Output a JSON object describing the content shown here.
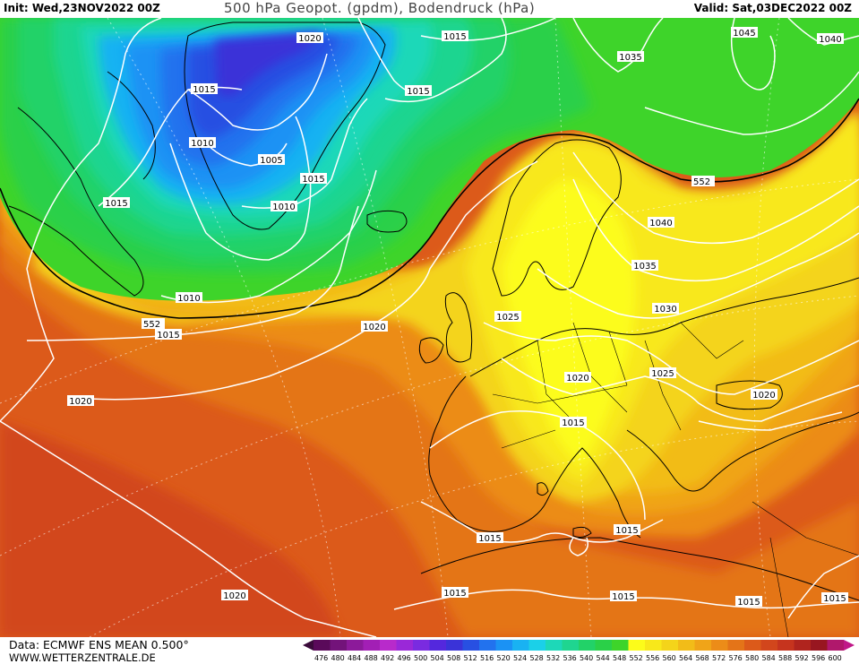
{
  "header": {
    "init": "Init: Wed,23NOV2022 00Z",
    "title": "500 hPa Geopot. (gpdm), Bodendruck (hPa)",
    "valid": "Valid: Sat,03DEC2022 00Z"
  },
  "footer": {
    "source": "Data: ECMWF ENS MEAN 0.500°",
    "website": "WWW.WETTERZENTRALE.DE"
  },
  "legend": {
    "ticks": [
      "476",
      "480",
      "484",
      "488",
      "492",
      "496",
      "500",
      "504",
      "508",
      "512",
      "516",
      "520",
      "524",
      "528",
      "532",
      "536",
      "540",
      "544",
      "548",
      "552",
      "556",
      "560",
      "564",
      "568",
      "572",
      "576",
      "580",
      "584",
      "588",
      "592",
      "596",
      "600"
    ],
    "colors": [
      "#5a0a5a",
      "#73137a",
      "#8c1a9a",
      "#a21fb5",
      "#b82acb",
      "#9a28d8",
      "#7a2be0",
      "#5428dd",
      "#3a33d8",
      "#2850e2",
      "#2272ee",
      "#1b92f4",
      "#19b2f2",
      "#1bd0e8",
      "#1dd8b8",
      "#1fd590",
      "#22d268",
      "#2ad048",
      "#3ed42a",
      "#fcfc1a",
      "#f8e81a",
      "#f4d41a",
      "#f2bc18",
      "#f0a418",
      "#ec8c18",
      "#e47418",
      "#dc5a1a",
      "#d2461c",
      "#c6341e",
      "#b0241e",
      "#981620",
      "#b0186c"
    ]
  },
  "contours": {
    "geopotential": [
      "552",
      "552"
    ],
    "pressure": [
      "1020",
      "1015",
      "1015",
      "1010",
      "1005",
      "1015",
      "1010",
      "1015",
      "1010",
      "1015",
      "1020",
      "1020",
      "1035",
      "1045",
      "1040",
      "1040",
      "1035",
      "1030",
      "1025",
      "1025",
      "1020",
      "1020",
      "1015",
      "1015",
      "1015",
      "1015",
      "1015",
      "1015",
      "1015",
      "1020",
      "1015"
    ]
  }
}
